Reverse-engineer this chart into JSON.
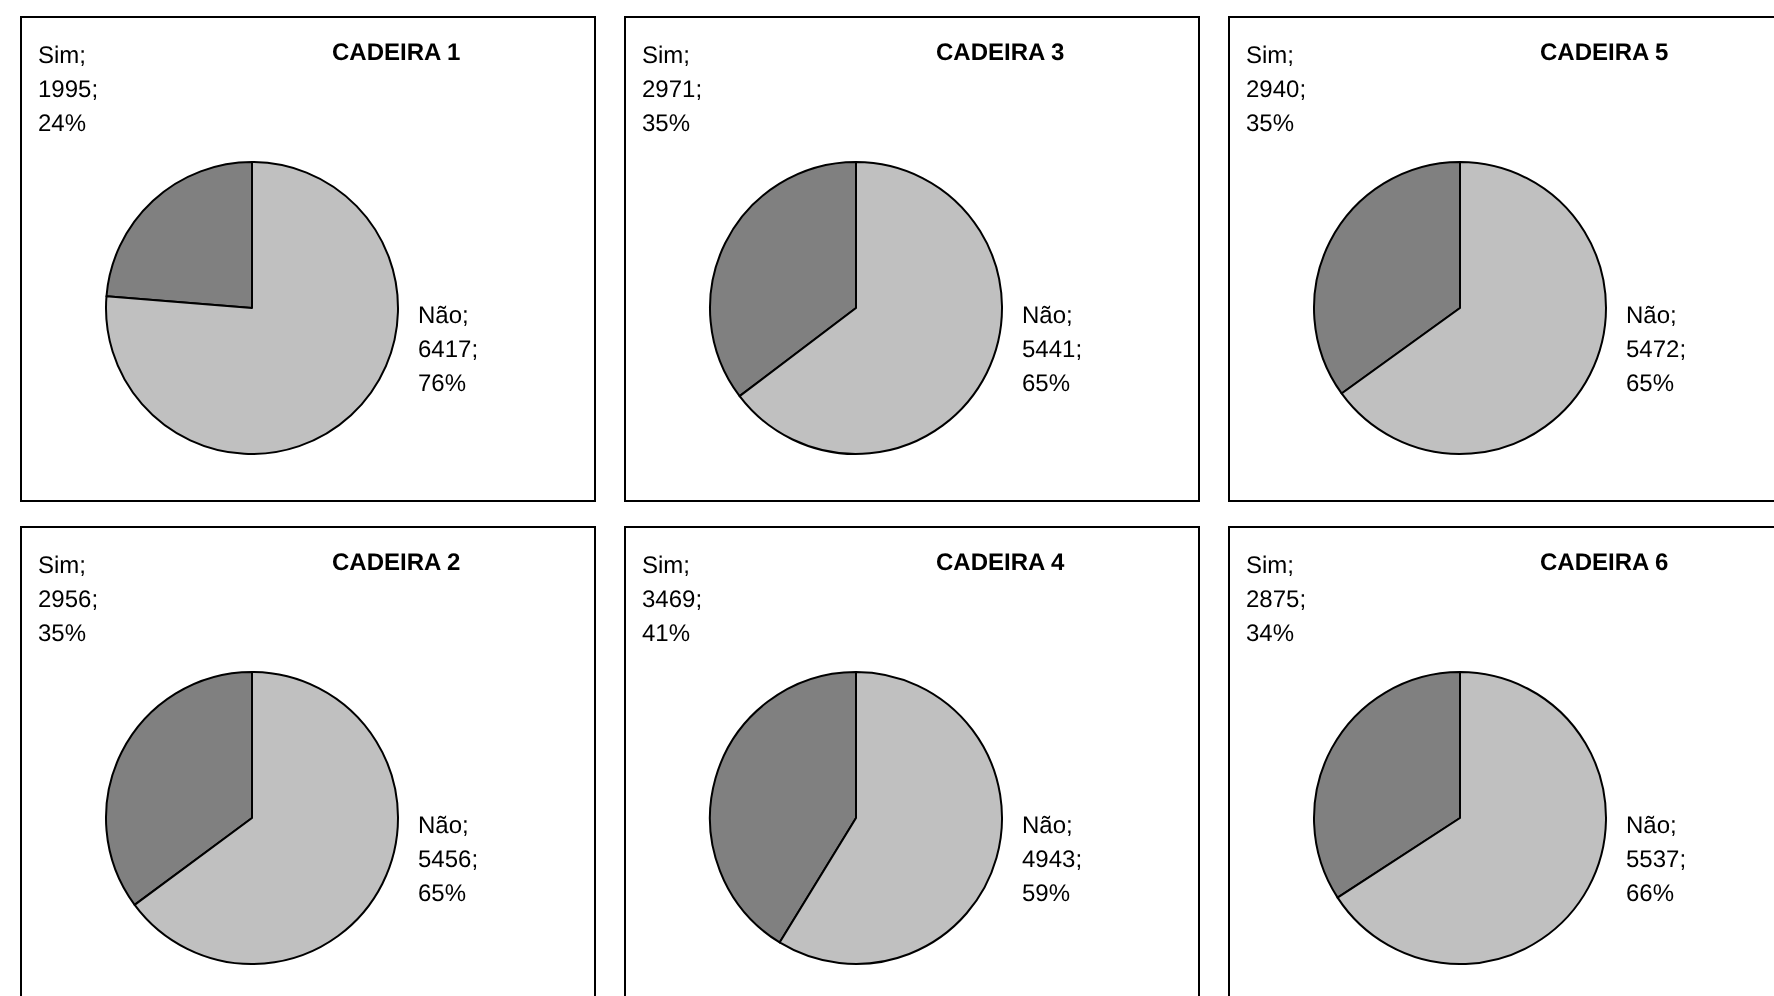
{
  "chart_data": [
    {
      "type": "pie",
      "title": "CADEIRA 1",
      "categories": [
        "Sim",
        "Não"
      ],
      "values": [
        1995,
        6417
      ],
      "value_labels": [
        ";\n1995;\n24%",
        ";\n6417;\n76%"
      ],
      "colors": [
        "#808080",
        "#c0c0c0"
      ]
    },
    {
      "type": "pie",
      "title": "CADEIRA 3",
      "categories": [
        "Sim",
        "Não"
      ],
      "values": [
        2971,
        5441
      ],
      "value_labels": [
        ";\n2971;\n35%",
        ";\n5441;\n65%"
      ],
      "colors": [
        "#808080",
        "#c0c0c0"
      ]
    },
    {
      "type": "pie",
      "title": "CADEIRA 5",
      "categories": [
        "Sim",
        "Não"
      ],
      "values": [
        2940,
        5472
      ],
      "value_labels": [
        ";\n2940;\n35%",
        ";\n5472;\n65%"
      ],
      "colors": [
        "#808080",
        "#c0c0c0"
      ]
    },
    {
      "type": "pie",
      "title": "CADEIRA 2",
      "categories": [
        "Sim",
        "Não"
      ],
      "values": [
        2956,
        5456
      ],
      "value_labels": [
        ";\n2956;\n35%",
        ";\n5456;\n65%"
      ],
      "colors": [
        "#808080",
        "#c0c0c0"
      ]
    },
    {
      "type": "pie",
      "title": "CADEIRA 4",
      "categories": [
        "Sim",
        "Não"
      ],
      "values": [
        3469,
        4943
      ],
      "value_labels": [
        ";\n3469;\n41%",
        ";\n4943;\n59%"
      ],
      "colors": [
        "#808080",
        "#c0c0c0"
      ]
    },
    {
      "type": "pie",
      "title": "CADEIRA 6",
      "categories": [
        "Sim",
        "Não"
      ],
      "values": [
        2875,
        5537
      ],
      "value_labels": [
        ";\n2875;\n34%",
        ";\n5537;\n66%"
      ],
      "colors": [
        "#808080",
        "#c0c0c0"
      ]
    }
  ]
}
